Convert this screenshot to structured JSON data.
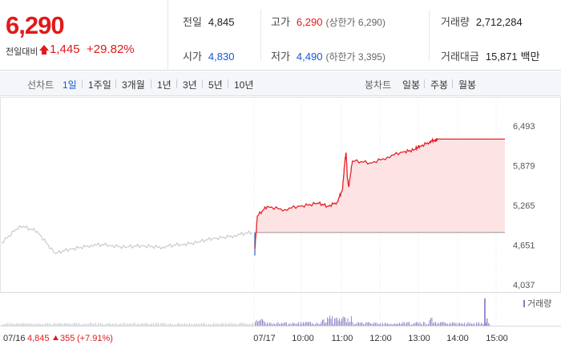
{
  "summary": {
    "price": "6,290",
    "prev_label": "전일대비",
    "change_amount": "1,445",
    "change_percent": "+29.82%",
    "stats": {
      "prev_close_label": "전일",
      "prev_close": "4,845",
      "high_label": "고가",
      "high": "6,290",
      "upper_limit": "(상한가 6,290)",
      "volume_label": "거래량",
      "volume": "2,712,284",
      "open_label": "시가",
      "open": "4,830",
      "low_label": "저가",
      "low": "4,490",
      "lower_limit": "(하한가 3,395)",
      "turnover_label": "거래대금",
      "turnover": "15,871",
      "turnover_unit": "백만"
    },
    "colors": {
      "up": "#e01a1a",
      "down": "#1558d8"
    }
  },
  "period_bar": {
    "line_label": "선차트",
    "line_periods": [
      "1일",
      "1주일",
      "3개월",
      "1년",
      "3년",
      "5년",
      "10년"
    ],
    "active_period": "1일",
    "candle_label": "봉차트",
    "candle_periods": [
      "일봉",
      "주봉",
      "월봉"
    ]
  },
  "chart_data": {
    "type": "line",
    "y_ticks": [
      "6,493",
      "5,879",
      "5,265",
      "4,651",
      "4,037"
    ],
    "ylim": [
      4037,
      6493
    ],
    "x_ticks": [
      "07/17",
      "10:00",
      "11:00",
      "12:00",
      "13:00",
      "14:00",
      "15:00"
    ],
    "volume_legend": "거래량",
    "prev_day_footer": {
      "date": "07/16",
      "close": "4,845",
      "change": "355",
      "change_pct": "(+7.91%)"
    },
    "reference_price": 4845,
    "series": [
      {
        "x": [
          "07/16 09:00",
          "07/16 09:20",
          "07/16 09:40",
          "07/16 10:00",
          "07/16 10:30",
          "07/16 11:00",
          "07/16 11:30",
          "07/16 12:00",
          "07/16 12:30",
          "07/16 13:00",
          "07/16 13:30",
          "07/16 14:00",
          "07/16 14:30",
          "07/16 15:00",
          "07/16 15:30"
        ],
        "values": [
          4690,
          4950,
          4860,
          4520,
          4600,
          4650,
          4650,
          4620,
          4640,
          4620,
          4660,
          4700,
          4760,
          4800,
          4845
        ]
      },
      {
        "x": [
          "09:00",
          "09:05",
          "09:15",
          "09:30",
          "09:45",
          "10:00",
          "10:15",
          "10:30",
          "10:40",
          "10:50",
          "10:55",
          "11:05",
          "11:10",
          "11:20",
          "11:40",
          "12:00",
          "12:20",
          "12:40",
          "13:00",
          "13:15",
          "13:25",
          "13:30",
          "14:00",
          "15:00",
          "15:30"
        ],
        "values": [
          4600,
          5100,
          5250,
          5200,
          5260,
          5300,
          5250,
          5320,
          5500,
          5950,
          6080,
          5700,
          5550,
          5950,
          5920,
          6010,
          6100,
          6130,
          6180,
          6250,
          6270,
          6290,
          6290,
          6290,
          6290
        ]
      }
    ]
  }
}
